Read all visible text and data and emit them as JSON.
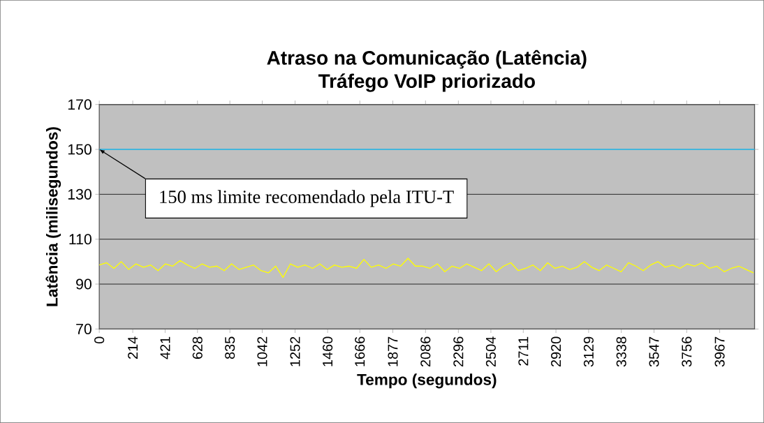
{
  "chart_data": {
    "type": "line",
    "title": "Atraso na Comunicação (Latência)",
    "subtitle": "Tráfego VoIP priorizado",
    "xlabel": "Tempo (segundos)",
    "ylabel": "Latência (milisegundos)",
    "x": [
      0,
      47,
      94,
      141,
      188,
      235,
      282,
      329,
      376,
      423,
      470,
      517,
      564,
      611,
      658,
      705,
      752,
      799,
      846,
      893,
      940,
      987,
      1034,
      1081,
      1128,
      1175,
      1222,
      1269,
      1316,
      1363,
      1410,
      1457,
      1504,
      1551,
      1598,
      1645,
      1692,
      1739,
      1786,
      1833,
      1880,
      1927,
      1974,
      2021,
      2068,
      2115,
      2162,
      2209,
      2256,
      2303,
      2350,
      2397,
      2444,
      2491,
      2538,
      2585,
      2632,
      2679,
      2726,
      2773,
      2820,
      2867,
      2914,
      2961,
      3008,
      3055,
      3102,
      3149,
      3196,
      3243,
      3290,
      3337,
      3384,
      3431,
      3478,
      3525,
      3572,
      3619,
      3666,
      3713,
      3760,
      3807,
      3854,
      3901,
      3948,
      3995,
      4042,
      4089,
      4136,
      4183
    ],
    "series": [
      {
        "color": "#ffff00",
        "values": [
          98.5,
          99.5,
          97,
          100,
          96.5,
          99,
          97.5,
          98.5,
          96,
          99,
          98,
          100.5,
          98.5,
          97,
          99,
          97.5,
          98,
          96,
          99,
          96.5,
          97.5,
          98.5,
          96,
          95,
          98,
          93,
          99,
          97.5,
          98.5,
          97,
          99,
          96.5,
          98.5,
          97.5,
          98,
          97,
          101,
          97.5,
          98.5,
          97,
          99,
          98,
          101.5,
          98,
          98,
          97,
          99,
          95.5,
          98,
          97,
          99,
          97.5,
          96,
          99,
          95.5,
          98,
          99.5,
          96,
          97,
          98.5,
          96,
          99.5,
          97,
          98,
          96.5,
          97.5,
          100,
          97.5,
          96,
          98.5,
          97,
          95.5,
          99.5,
          98,
          96,
          98.5,
          100,
          97.5,
          98.5,
          97,
          99,
          98,
          99.5,
          97,
          98,
          95.5,
          97,
          98,
          96.5,
          95
        ]
      }
    ],
    "xlim": [
      0,
      4190
    ],
    "ylim": [
      70,
      170
    ],
    "xticks": [
      0,
      214,
      421,
      628,
      835,
      1042,
      1252,
      1460,
      1666,
      1877,
      2086,
      2296,
      2504,
      2711,
      2920,
      3129,
      3338,
      3547,
      3756,
      3967
    ],
    "yticks": [
      70,
      90,
      110,
      130,
      150,
      170
    ],
    "grid": "y",
    "ref_lines": [
      {
        "axis": "y",
        "value": 150,
        "color": "#33ccff"
      }
    ],
    "annotations": [
      {
        "text": "150 ms limite recomendado pela ITU-T",
        "x": 0,
        "y": 150
      }
    ]
  }
}
